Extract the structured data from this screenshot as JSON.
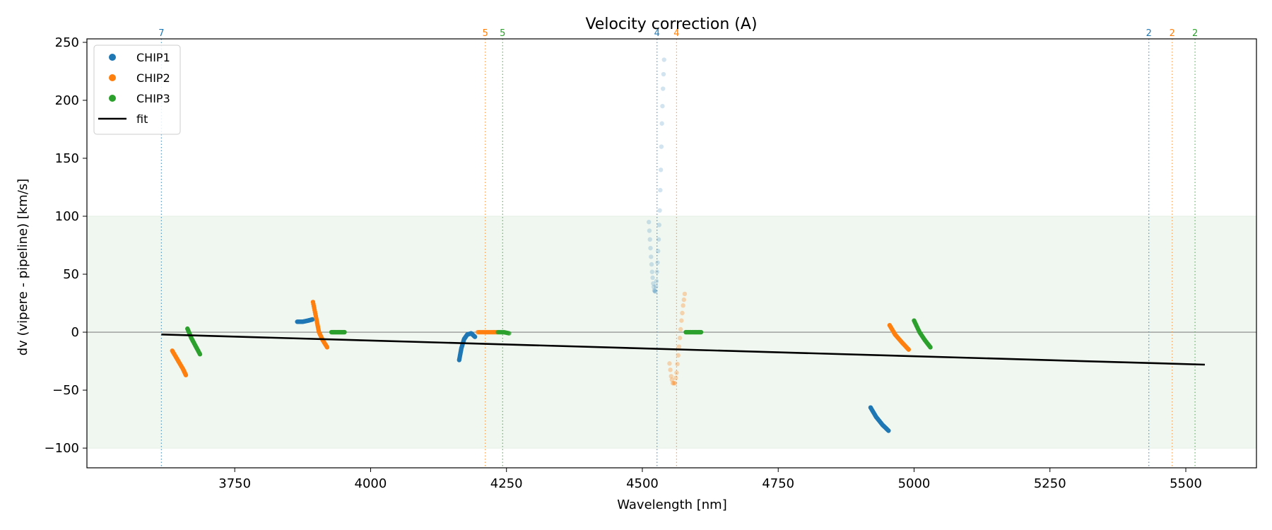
{
  "chart_data": {
    "type": "scatter",
    "title": "Velocity correction (A)",
    "xlabel": "Wavelength [nm]",
    "ylabel": "dv (vipere - pipeline) [km/s]",
    "xlim": [
      3478,
      5630
    ],
    "ylim": [
      -117,
      253
    ],
    "xticks": [
      3750,
      4000,
      4250,
      4500,
      4750,
      5000,
      5250,
      5500
    ],
    "xtick_labels": [
      "3750",
      "4000",
      "4250",
      "4500",
      "4750",
      "5000",
      "5250",
      "5500"
    ],
    "yticks": [
      -100,
      -50,
      0,
      50,
      100,
      150,
      200,
      250
    ],
    "ytick_labels": [
      "−100",
      "−50",
      "0",
      "50",
      "100",
      "150",
      "200",
      "250"
    ],
    "band": [
      -100,
      100
    ],
    "band_color": "#f0f7f0",
    "zero_line": true,
    "legend_position": "top-left",
    "colors": {
      "CHIP1": "#1f77b4",
      "CHIP2": "#ff7f0e",
      "CHIP3": "#2ca02c",
      "fit": "#000000"
    },
    "legend": [
      {
        "name": "CHIP1",
        "kind": "marker"
      },
      {
        "name": "CHIP2",
        "kind": "marker"
      },
      {
        "name": "CHIP3",
        "kind": "marker"
      },
      {
        "name": "fit",
        "kind": "line"
      }
    ],
    "fit": {
      "x": [
        3615,
        5535
      ],
      "y": [
        -2,
        -28
      ]
    },
    "segments": [
      {
        "series": "CHIP2",
        "alpha": 1,
        "points": [
          [
            3635,
            -16
          ],
          [
            3645,
            -24
          ],
          [
            3655,
            -32
          ],
          [
            3660,
            -37
          ]
        ]
      },
      {
        "series": "CHIP3",
        "alpha": 1,
        "points": [
          [
            3663,
            3
          ],
          [
            3670,
            -5
          ],
          [
            3678,
            -12
          ],
          [
            3686,
            -19
          ]
        ]
      },
      {
        "series": "CHIP1",
        "alpha": 1,
        "points": [
          [
            3865,
            9
          ],
          [
            3875,
            9
          ],
          [
            3885,
            10
          ],
          [
            3893,
            11
          ]
        ]
      },
      {
        "series": "CHIP2",
        "alpha": 1,
        "points": [
          [
            3894,
            26
          ],
          [
            3900,
            12
          ],
          [
            3905,
            0
          ],
          [
            3912,
            -7
          ],
          [
            3920,
            -13
          ]
        ]
      },
      {
        "series": "CHIP3",
        "alpha": 1,
        "points": [
          [
            3928,
            0
          ],
          [
            3940,
            0
          ],
          [
            3952,
            0
          ]
        ]
      },
      {
        "series": "CHIP1",
        "alpha": 1,
        "points": [
          [
            4163,
            -24
          ],
          [
            4167,
            -14
          ],
          [
            4172,
            -6
          ],
          [
            4178,
            -2
          ],
          [
            4185,
            -1
          ],
          [
            4192,
            -4
          ]
        ]
      },
      {
        "series": "CHIP2",
        "alpha": 0.6,
        "points": [
          [
            4197,
            0
          ],
          [
            4210,
            0
          ],
          [
            4222,
            0
          ],
          [
            4233,
            0
          ]
        ]
      },
      {
        "series": "CHIP3",
        "alpha": 0.6,
        "points": [
          [
            4234,
            0
          ],
          [
            4245,
            0
          ],
          [
            4255,
            -1
          ]
        ]
      },
      {
        "series": "CHIP1",
        "alpha": 0.2,
        "points": [
          [
            4512,
            95
          ],
          [
            4514,
            80
          ],
          [
            4516,
            65
          ],
          [
            4518,
            52
          ],
          [
            4520,
            42
          ],
          [
            4522,
            36
          ],
          [
            4524,
            35
          ],
          [
            4526,
            44
          ],
          [
            4528,
            60
          ],
          [
            4530,
            80
          ],
          [
            4532,
            105
          ],
          [
            4534,
            140
          ],
          [
            4536,
            180
          ],
          [
            4538,
            210
          ],
          [
            4540,
            235
          ]
        ]
      },
      {
        "series": "CHIP2",
        "alpha": 0.3,
        "points": [
          [
            4550,
            -27
          ],
          [
            4553,
            -38
          ],
          [
            4556,
            -44
          ],
          [
            4560,
            -44
          ],
          [
            4563,
            -35
          ],
          [
            4566,
            -20
          ],
          [
            4569,
            -5
          ],
          [
            4572,
            10
          ],
          [
            4575,
            23
          ],
          [
            4578,
            33
          ]
        ]
      },
      {
        "series": "CHIP3",
        "alpha": 1,
        "points": [
          [
            4580,
            0
          ],
          [
            4595,
            0
          ],
          [
            4608,
            0
          ]
        ]
      },
      {
        "series": "CHIP1",
        "alpha": 1,
        "points": [
          [
            4920,
            -65
          ],
          [
            4930,
            -73
          ],
          [
            4942,
            -80
          ],
          [
            4953,
            -85
          ]
        ]
      },
      {
        "series": "CHIP2",
        "alpha": 1,
        "points": [
          [
            4955,
            6
          ],
          [
            4965,
            -2
          ],
          [
            4978,
            -9
          ],
          [
            4990,
            -15
          ]
        ]
      },
      {
        "series": "CHIP3",
        "alpha": 1,
        "points": [
          [
            5000,
            10
          ],
          [
            5010,
            0
          ],
          [
            5020,
            -7
          ],
          [
            5030,
            -13
          ]
        ]
      }
    ],
    "order_markers": [
      {
        "x": 3615,
        "label": "7",
        "series": "CHIP1"
      },
      {
        "x": 4211,
        "label": "5",
        "series": "CHIP2"
      },
      {
        "x": 4243,
        "label": "5",
        "series": "CHIP3"
      },
      {
        "x": 4527,
        "label": "4",
        "series": "CHIP1"
      },
      {
        "x": 4563,
        "label": "4",
        "series": "CHIP2"
      },
      {
        "x": 5432,
        "label": "2",
        "series": "CHIP1"
      },
      {
        "x": 5475,
        "label": "2",
        "series": "CHIP2"
      },
      {
        "x": 5517,
        "label": "2",
        "series": "CHIP3"
      }
    ]
  }
}
